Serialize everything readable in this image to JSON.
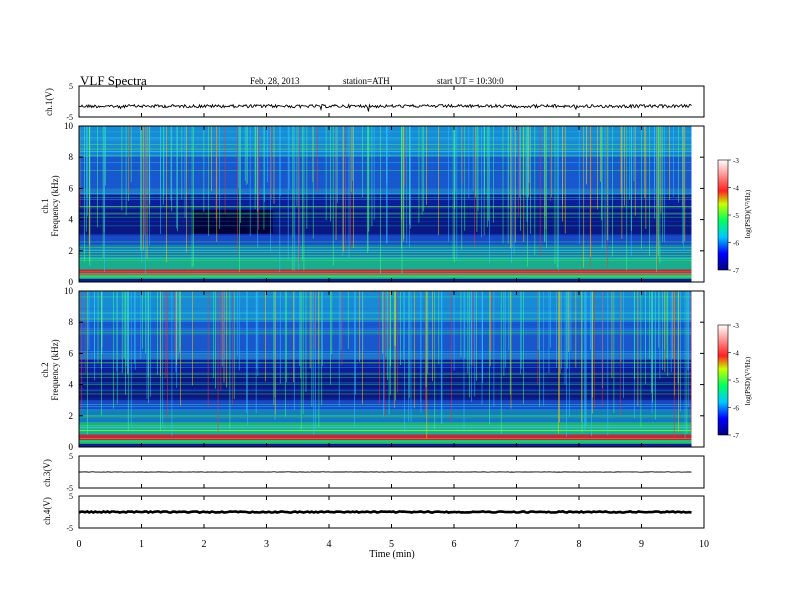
{
  "header": {
    "title": "VLF Spectra",
    "date": "Feb. 28, 2013",
    "station": "station=ATH",
    "start": "start UT =   10:30:0"
  },
  "colors": {
    "waveform": "#000000",
    "spectrogram_base": "#0b1f9c",
    "axis": "#000000"
  },
  "chart_data": [
    {
      "type": "line",
      "panel": "ch1-waveform",
      "ylabel": "ch.1(V)",
      "ylim": [
        -5,
        5
      ],
      "yticks": [
        "5",
        "-5"
      ],
      "note": "noisy waveform around -1.5 V",
      "values_approx_mean": -1.5
    },
    {
      "type": "heatmap",
      "panel": "ch1-spectrogram",
      "ylabel": "ch.1\nFrequency (kHz)",
      "ylabel_line1": "ch.1",
      "ylabel_line2": "Frequency (kHz)",
      "ylim": [
        0,
        10
      ],
      "yticks": [
        "0",
        "2",
        "4",
        "6",
        "8",
        "10"
      ],
      "colorbar": {
        "label": "log(PSD)(V²/Hz)",
        "range": [
          -7,
          -3
        ],
        "ticks": [
          "-3",
          "-4",
          "-5",
          "-6",
          "-7"
        ]
      }
    },
    {
      "type": "heatmap",
      "panel": "ch2-spectrogram",
      "ylabel_line1": "ch.2",
      "ylabel_line2": "Frequency (kHz)",
      "ylim": [
        0,
        10
      ],
      "yticks": [
        "0",
        "2",
        "4",
        "6",
        "8",
        "10"
      ],
      "colorbar": {
        "label": "log(PSD)(V²/Hz)",
        "range": [
          -7,
          -3
        ],
        "ticks": [
          "-3",
          "-4",
          "-5",
          "-6",
          "-7"
        ]
      }
    },
    {
      "type": "line",
      "panel": "ch3-waveform",
      "ylabel": "ch.3(V)",
      "ylim": [
        -5,
        5
      ],
      "yticks": [
        "5",
        "-5"
      ],
      "values_approx_mean": 0
    },
    {
      "type": "line",
      "panel": "ch4-waveform",
      "ylabel": "ch.4(V)",
      "ylim": [
        -5,
        5
      ],
      "yticks": [
        "5",
        "-5"
      ],
      "values_approx_mean": 0
    }
  ],
  "x_axis": {
    "xlabel": "Time (min)",
    "xlim": [
      0,
      10
    ],
    "ticks": [
      "0",
      "1",
      "2",
      "3",
      "4",
      "5",
      "6",
      "7",
      "8",
      "9",
      "10"
    ],
    "data_end": 9.8
  }
}
